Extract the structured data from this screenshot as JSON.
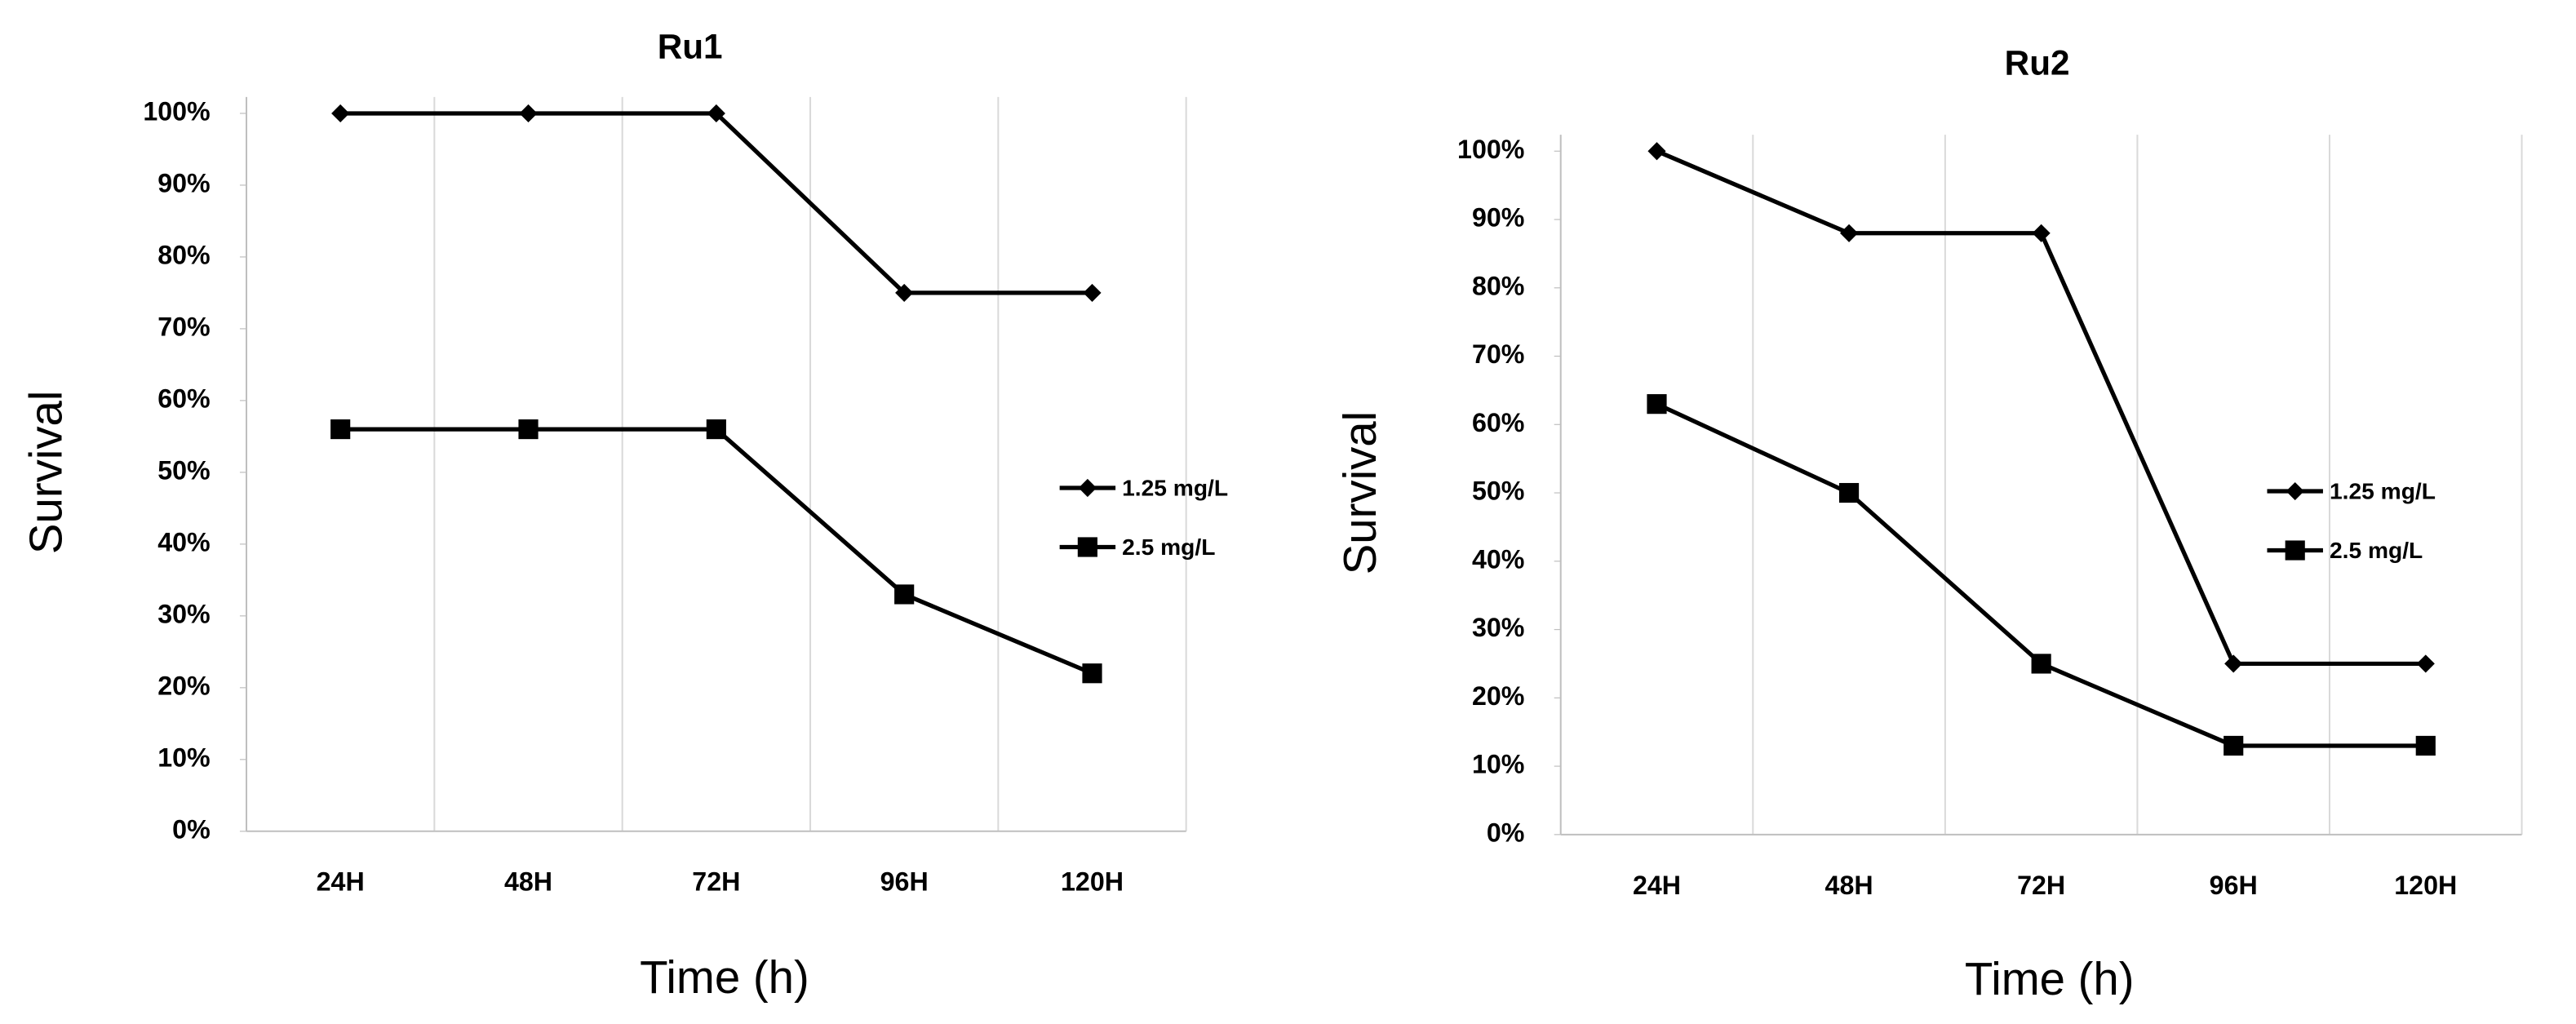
{
  "chart_data": [
    {
      "type": "line",
      "title": "Ru1",
      "x_label": "Time (h)",
      "y_label": "Survival",
      "categories": [
        "24H",
        "48H",
        "72H",
        "96H",
        "120H"
      ],
      "series": [
        {
          "name": "1.25 mg/L",
          "color": "#000000",
          "marker": "diamond",
          "values": [
            100,
            100,
            100,
            75,
            75
          ]
        },
        {
          "name": "2.5 mg/L",
          "color": "#000000",
          "marker": "square",
          "values": [
            56,
            56,
            56,
            33,
            22
          ]
        }
      ],
      "ylim": [
        0,
        100
      ],
      "yticks": [
        {
          "value": 0,
          "label": "0%"
        },
        {
          "value": 10,
          "label": "10%"
        },
        {
          "value": 20,
          "label": "20%"
        },
        {
          "value": 30,
          "label": "30%"
        },
        {
          "value": 40,
          "label": "40%"
        },
        {
          "value": 50,
          "label": "50%"
        },
        {
          "value": 60,
          "label": "60%"
        },
        {
          "value": 70,
          "label": "70%"
        },
        {
          "value": 80,
          "label": "80%"
        },
        {
          "value": 90,
          "label": "90%"
        },
        {
          "value": 100,
          "label": "100%"
        }
      ],
      "grid": true,
      "legend": "right"
    },
    {
      "type": "line",
      "title": "Ru2",
      "x_label": "Time (h)",
      "y_label": "Survival",
      "categories": [
        "24H",
        "48H",
        "72H",
        "96H",
        "120H"
      ],
      "series": [
        {
          "name": "1.25 mg/L",
          "color": "#000000",
          "marker": "diamond",
          "values": [
            100,
            88,
            88,
            25,
            25
          ]
        },
        {
          "name": "2.5 mg/L",
          "color": "#000000",
          "marker": "square",
          "values": [
            63,
            50,
            25,
            13,
            13
          ]
        }
      ],
      "ylim": [
        0,
        100
      ],
      "yticks": [
        {
          "value": 0,
          "label": "0%"
        },
        {
          "value": 10,
          "label": "10%"
        },
        {
          "value": 20,
          "label": "20%"
        },
        {
          "value": 30,
          "label": "30%"
        },
        {
          "value": 40,
          "label": "40%"
        },
        {
          "value": 50,
          "label": "50%"
        },
        {
          "value": 60,
          "label": "60%"
        },
        {
          "value": 70,
          "label": "70%"
        },
        {
          "value": 80,
          "label": "80%"
        },
        {
          "value": 90,
          "label": "90%"
        },
        {
          "value": 100,
          "label": "100%"
        }
      ],
      "grid": true,
      "legend": "right"
    }
  ]
}
